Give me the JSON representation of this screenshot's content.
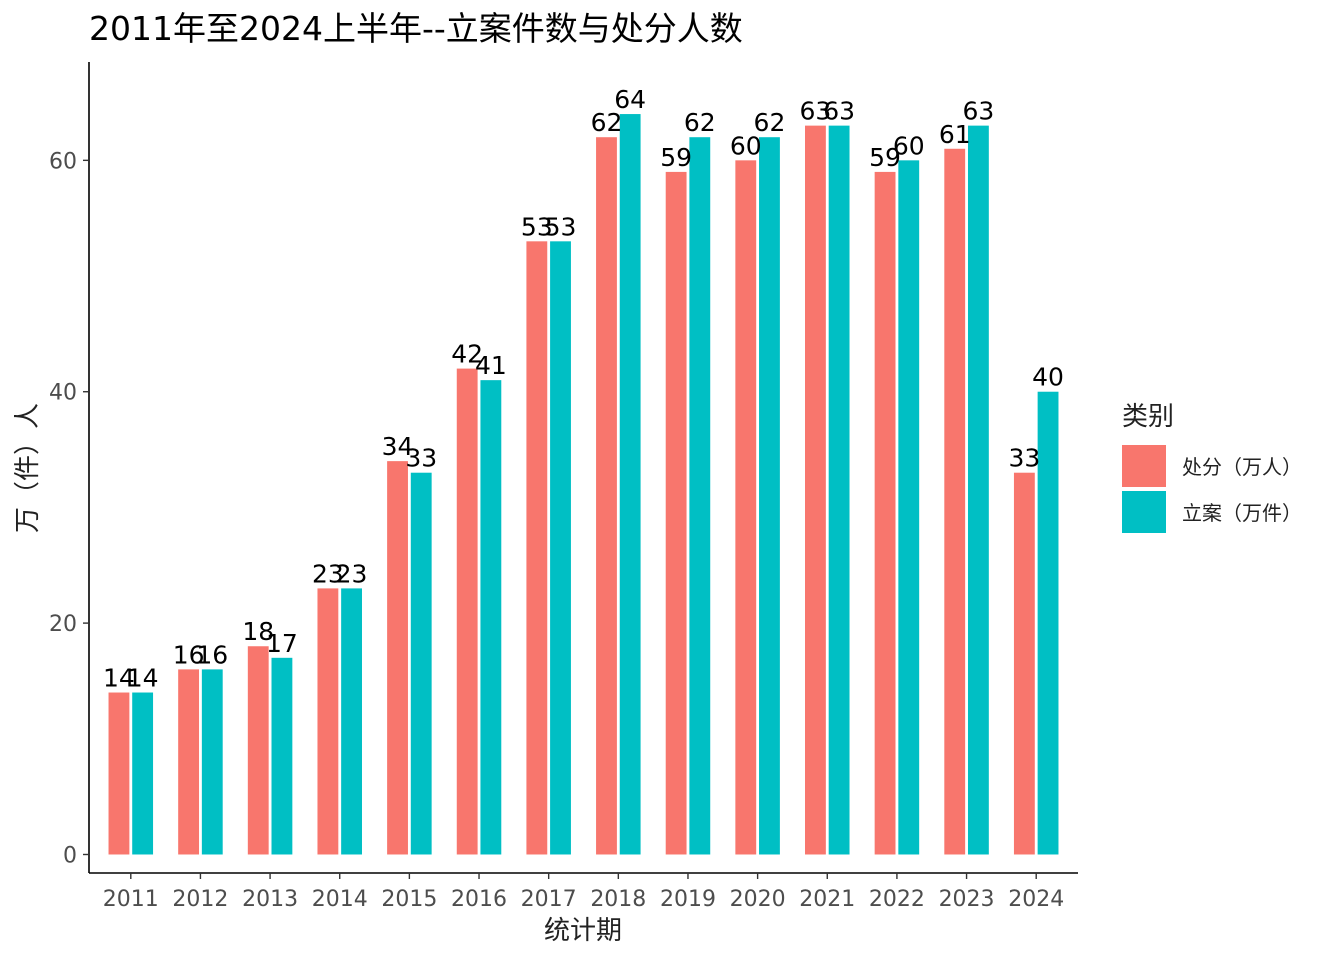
{
  "chart_data": {
    "type": "bar",
    "title": "2011年至2024上半年--立案件数与处分人数",
    "xlabel": "统计期",
    "ylabel": "万（件）人",
    "categories": [
      "2011",
      "2012",
      "2013",
      "2014",
      "2015",
      "2016",
      "2017",
      "2018",
      "2019",
      "2020",
      "2021",
      "2022",
      "2023",
      "2024"
    ],
    "series": [
      {
        "name": "处分（万人）",
        "color": "#F8766D",
        "values": [
          14,
          16,
          18,
          23,
          34,
          42,
          53,
          62,
          59,
          60,
          63,
          59,
          61,
          33
        ]
      },
      {
        "name": "立案（万件）",
        "color": "#00BFC4",
        "values": [
          14,
          16,
          17,
          23,
          33,
          41,
          53,
          64,
          62,
          62,
          63,
          60,
          63,
          40
        ]
      }
    ],
    "ylim": [
      -1.6,
      68.5
    ],
    "yticks": [
      0,
      20,
      40,
      60
    ],
    "legend_title": "类别",
    "legend_position": "right",
    "grid": false,
    "data_labels": true
  }
}
